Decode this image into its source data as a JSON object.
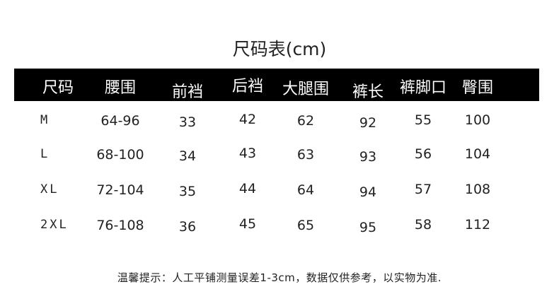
{
  "title": "尺码表(cm)",
  "headers": [
    "尺码",
    "腰围",
    "前裆",
    "后裆",
    "大腿围",
    "裤长",
    "裤脚口",
    "臀围"
  ],
  "rows": [
    [
      "M",
      "64-96",
      "33",
      "42",
      "62",
      "92",
      "55",
      "100"
    ],
    [
      "L",
      "68-100",
      "34",
      "43",
      "63",
      "93",
      "56",
      "104"
    ],
    [
      "XL",
      "72-104",
      "35",
      "44",
      "64",
      "94",
      "57",
      "108"
    ],
    [
      "2XL",
      "76-108",
      "36",
      "45",
      "65",
      "95",
      "58",
      "112"
    ]
  ],
  "note": "温馨提示：人工平铺测量误差1-3cm，数据仅供参考，以实物为准.",
  "colors": {
    "header_bg": "#000000",
    "header_text": "#ffffff",
    "text": "#222222"
  }
}
